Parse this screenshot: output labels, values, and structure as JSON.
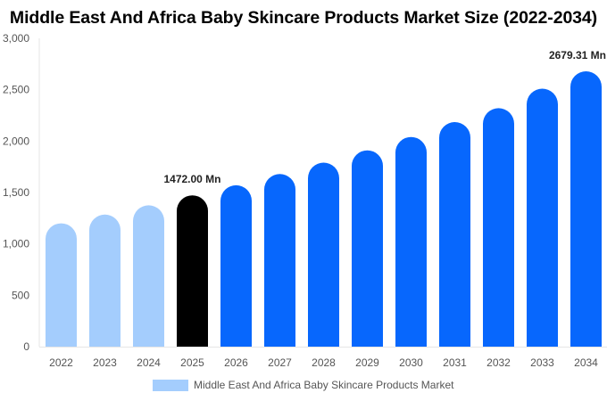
{
  "chart_data": {
    "type": "bar",
    "title": "Middle East And Africa Baby Skincare Products Market Size (2022-2034)",
    "xlabel": "",
    "ylabel": "",
    "ylim": [
      0,
      3000
    ],
    "yticks": [
      0,
      500,
      1000,
      1500,
      2000,
      2500,
      3000
    ],
    "ytick_labels": [
      "0",
      "500",
      "1,000",
      "1,500",
      "2,000",
      "2,500",
      "3,000"
    ],
    "categories": [
      "2022",
      "2023",
      "2024",
      "2025",
      "2026",
      "2027",
      "2028",
      "2029",
      "2030",
      "2031",
      "2032",
      "2033",
      "2034"
    ],
    "series": [
      {
        "name": "Middle East And Africa Baby Skincare Products Market",
        "values": [
          1200,
          1285,
          1375,
          1472.0,
          1570,
          1680,
          1790,
          1910,
          2040,
          2185,
          2320,
          2510,
          2679.31
        ],
        "colors": [
          "#a4cdfd",
          "#a4cdfd",
          "#a4cdfd",
          "#000000",
          "#0767fd",
          "#0767fd",
          "#0767fd",
          "#0767fd",
          "#0767fd",
          "#0767fd",
          "#0767fd",
          "#0767fd",
          "#0767fd"
        ]
      }
    ],
    "data_labels": [
      {
        "category": "2025",
        "text": "1472.00 Mn"
      },
      {
        "category": "2034",
        "text": "2679.31 Mn"
      }
    ],
    "legend": {
      "position": "bottom",
      "label": "Middle East And Africa Baby Skincare Products Market",
      "color": "#a4cdfd"
    },
    "grid": false
  }
}
